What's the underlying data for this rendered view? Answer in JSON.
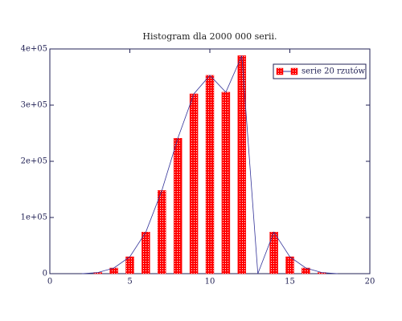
{
  "chart_data": {
    "type": "bar",
    "title": "Histogram dla 2000 000 serii.",
    "x": [
      2,
      3,
      4,
      5,
      6,
      7,
      8,
      9,
      10,
      11,
      12,
      13,
      14,
      15,
      16,
      17,
      18
    ],
    "series": [
      {
        "name": "serie 20 rzutów",
        "color": "#ff0000",
        "line_color": "#333399",
        "values": [
          0,
          2000,
          10000,
          30000,
          74000,
          148000,
          241000,
          320000,
          353000,
          323000,
          388000,
          0,
          74000,
          30000,
          10000,
          2000,
          0
        ]
      }
    ],
    "xlim": [
      0,
      20
    ],
    "xticks": [
      0,
      5,
      10,
      15,
      20
    ],
    "ylim": [
      0,
      400000
    ],
    "yticks": [
      0,
      {
        "value": 100000,
        "label": "1e+05"
      },
      {
        "value": 200000,
        "label": "2e+05"
      },
      {
        "value": 300000,
        "label": "3e+05"
      },
      {
        "value": 400000,
        "label": "4e+05"
      }
    ],
    "legend": "upper right"
  }
}
